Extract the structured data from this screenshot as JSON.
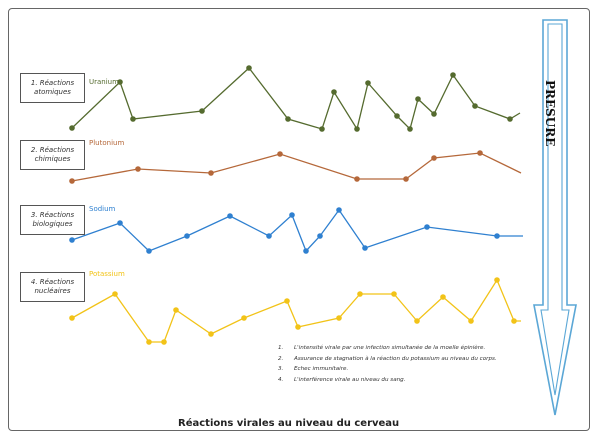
{
  "caption": "Réactions virales au niveau du cerveau",
  "pressure_label": "PRESURE",
  "colors": {
    "uranium": "#556b2f",
    "plutonium": "#b5683a",
    "sodium": "#2f80d0",
    "potassium": "#f2c318",
    "arrow": "#5ba7d6"
  },
  "rows": [
    {
      "key": "uranium",
      "label_line1": "1. Réactions",
      "label_line2": "atomiques",
      "name": "Uranium"
    },
    {
      "key": "plutonium",
      "label_line1": "2. Réactions",
      "label_line2": "chimiques",
      "name": "Plutonium"
    },
    {
      "key": "sodium",
      "label_line1": "3. Réactions",
      "label_line2": "biologiques",
      "name": "Sodium"
    },
    {
      "key": "potassium",
      "label_line1": "4. Réactions",
      "label_line2": "nucléaires",
      "name": "Potassium"
    }
  ],
  "legend": [
    {
      "num": "1.",
      "text": "L'intensité virale par une infection simultanée de la moelle épinière."
    },
    {
      "num": "2.",
      "text": "Assurance de stagnation à la réaction du potassium au niveau du corps."
    },
    {
      "num": "3.",
      "text": "Echec immunitaire."
    },
    {
      "num": "4.",
      "text": "L'interférence virale au niveau du sang."
    }
  ]
}
